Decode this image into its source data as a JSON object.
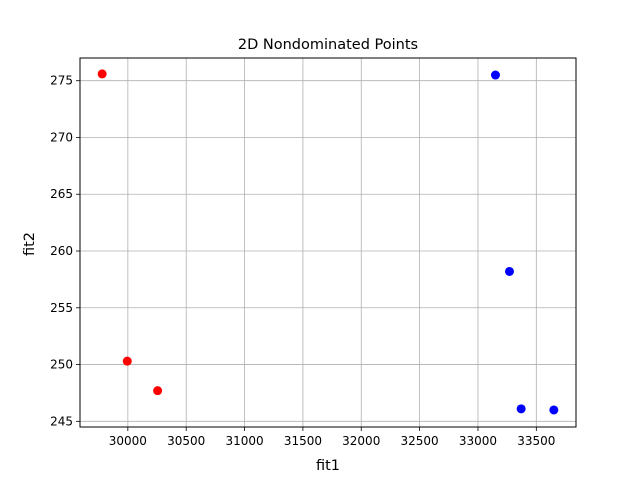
{
  "chart_data": {
    "type": "scatter",
    "title": "2D Nondominated Points",
    "xlabel": "fit1",
    "ylabel": "fit2",
    "xlim": [
      29590,
      33840
    ],
    "ylim": [
      244.5,
      277.0
    ],
    "xticks": [
      30000,
      30500,
      31000,
      31500,
      32000,
      32500,
      33000,
      33500
    ],
    "yticks": [
      245,
      250,
      255,
      260,
      265,
      270,
      275
    ],
    "grid": true,
    "series": [
      {
        "color": "#ff0000",
        "points": [
          {
            "x": 29780,
            "y": 275.6
          },
          {
            "x": 29995,
            "y": 250.3
          },
          {
            "x": 30255,
            "y": 247.7
          }
        ]
      },
      {
        "color": "#0000ff",
        "points": [
          {
            "x": 33150,
            "y": 275.5
          },
          {
            "x": 33270,
            "y": 258.2
          },
          {
            "x": 33370,
            "y": 246.1
          },
          {
            "x": 33650,
            "y": 246.0
          }
        ]
      }
    ]
  }
}
